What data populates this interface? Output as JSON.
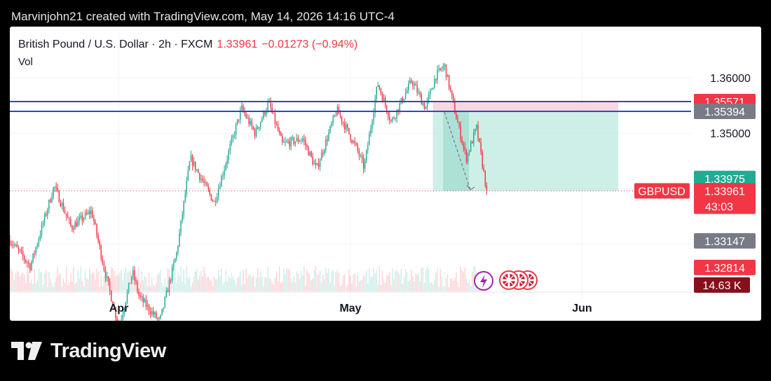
{
  "header": {
    "credit": "Marvinjohn21 created with TradingView.com, May 14, 2026 14:16 UTC-4"
  },
  "legend": {
    "instrument": "British Pound / U.S. Dollar · 2h · FXCM",
    "price": "1.33961",
    "change": "−0.01273 (−0.94%)",
    "volume_label": "Vol"
  },
  "brand": {
    "name": "TradingView"
  },
  "colors": {
    "up": "#22ab94",
    "down": "#f23645",
    "hline": "#2948d6",
    "stop_zone": "#f8c9d6",
    "target_zone": "#bde9df"
  },
  "chart_data": {
    "type": "candlestick",
    "symbol": "GBPUSD",
    "x_ticks": [
      "Apr",
      "May",
      "Jun"
    ],
    "y_ticks": [
      "1.36000",
      "1.35000"
    ],
    "ylim": [
      1.3215,
      1.3682
    ],
    "last_price": 1.33961,
    "countdown": "43:03",
    "volume_last": "14.63 K",
    "horizontal_lines": [
      1.35571,
      1.35394
    ],
    "price_labels": [
      {
        "value": "1.35571",
        "color": "#f23645"
      },
      {
        "value": "1.35394",
        "color": "#787b86"
      },
      {
        "value": "1.33975",
        "color": "#22ab94"
      },
      {
        "value": "1.33147",
        "color": "#787b86"
      },
      {
        "value": "1.32814",
        "color": "#f23645"
      }
    ],
    "short_position": {
      "entry": 1.3539,
      "stop": 1.3556,
      "target": 1.3396
    },
    "path": [
      [
        0.0,
        1.3308
      ],
      [
        0.03,
        1.326
      ],
      [
        0.065,
        1.3405
      ],
      [
        0.09,
        1.333
      ],
      [
        0.12,
        1.336
      ],
      [
        0.14,
        1.3248
      ],
      [
        0.16,
        1.315
      ],
      [
        0.18,
        1.325
      ],
      [
        0.19,
        1.3205
      ],
      [
        0.22,
        1.316
      ],
      [
        0.245,
        1.3285
      ],
      [
        0.265,
        1.3455
      ],
      [
        0.3,
        1.3375
      ],
      [
        0.34,
        1.3545
      ],
      [
        0.36,
        1.35
      ],
      [
        0.38,
        1.3555
      ],
      [
        0.4,
        1.348
      ],
      [
        0.43,
        1.349
      ],
      [
        0.45,
        1.3435
      ],
      [
        0.48,
        1.3542
      ],
      [
        0.51,
        1.347
      ],
      [
        0.52,
        1.3437
      ],
      [
        0.54,
        1.359
      ],
      [
        0.56,
        1.352
      ],
      [
        0.59,
        1.3595
      ],
      [
        0.61,
        1.3545
      ],
      [
        0.625,
        1.3603
      ],
      [
        0.638,
        1.3622
      ],
      [
        0.655,
        1.353
      ],
      [
        0.67,
        1.3455
      ],
      [
        0.685,
        1.351
      ],
      [
        0.7,
        1.3396
      ]
    ]
  }
}
